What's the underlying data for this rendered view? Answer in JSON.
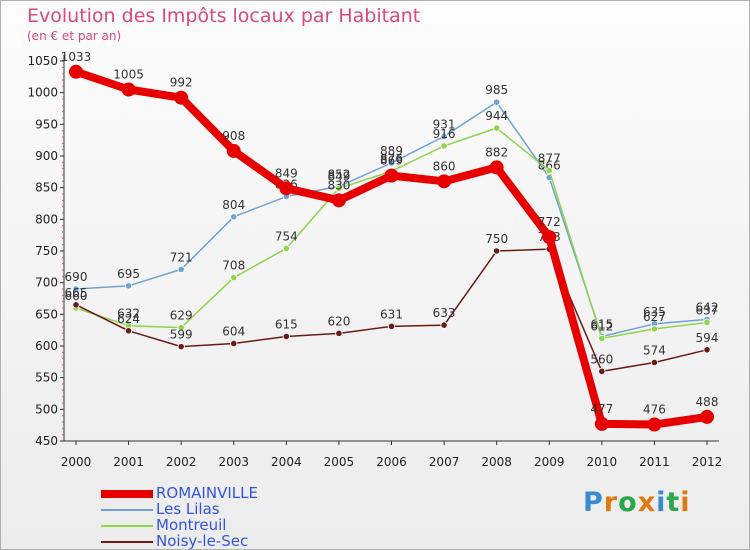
{
  "title": "Evolution des Impôts locaux par Habitant",
  "subtitle": "(en € et par an)",
  "logo": {
    "text": "Proxiti",
    "colors": [
      "#3a8ad6",
      "#e07a10",
      "#2aa84a",
      "#e07a10",
      "#3a8ad6",
      "#2aa84a",
      "#e07a10"
    ]
  },
  "chart_data": {
    "type": "line",
    "x": [
      "2000",
      "2001",
      "2002",
      "2003",
      "2004",
      "2005",
      "2006",
      "2007",
      "2008",
      "2009",
      "2010",
      "2011",
      "2012"
    ],
    "ylim": [
      450,
      1050
    ],
    "yticks": [
      450,
      500,
      550,
      600,
      650,
      700,
      750,
      800,
      850,
      900,
      950,
      1000,
      1050
    ],
    "grid": false,
    "legend_position": "bottom-left",
    "series": [
      {
        "name": "ROMAINVILLE",
        "color": "#e60000",
        "values": [
          1033,
          1005,
          992,
          908,
          849,
          830,
          869,
          860,
          882,
          772,
          477,
          476,
          488
        ]
      },
      {
        "name": "Les Lilas",
        "color": "#6fa3d4",
        "values": [
          690,
          695,
          721,
          804,
          836,
          852,
          889,
          931,
          985,
          866,
          615,
          635,
          642
        ]
      },
      {
        "name": "Montreuil",
        "color": "#8fd44a",
        "values": [
          660,
          632,
          629,
          708,
          754,
          849,
          876,
          916,
          944,
          877,
          612,
          627,
          637
        ]
      },
      {
        "name": "Noisy-le-Sec",
        "color": "#6b1a1a",
        "values": [
          665,
          624,
          599,
          604,
          615,
          620,
          631,
          633,
          750,
          753,
          560,
          574,
          594
        ]
      }
    ]
  }
}
